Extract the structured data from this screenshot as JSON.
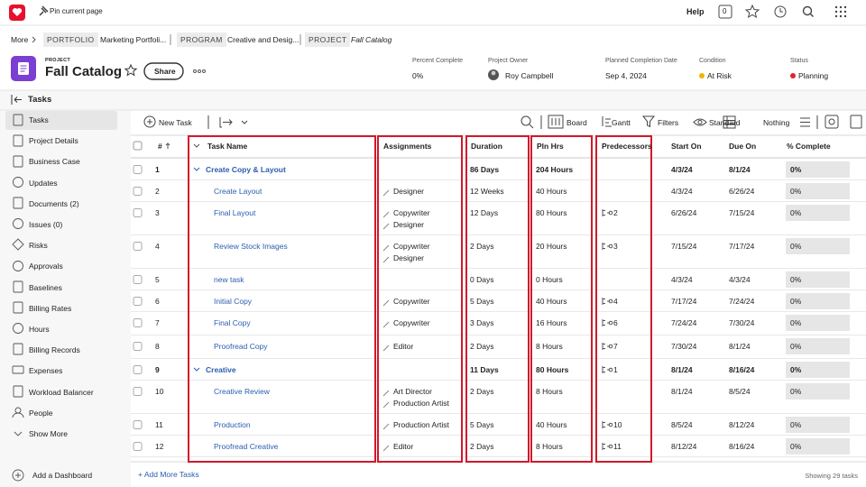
{
  "topbar": {
    "pin": "Pin current page",
    "help": "Help",
    "badge": "0"
  },
  "breadcrumb": {
    "more": "More",
    "items": [
      {
        "tag": "PORTFOLIO",
        "name": "Marketing Portfoli..."
      },
      {
        "tag": "PROGRAM",
        "name": "Creative and Desig..."
      },
      {
        "tag": "PROJECT",
        "name": "Fall Catalog"
      }
    ]
  },
  "project": {
    "label": "PROJECT",
    "title": "Fall Catalog",
    "share": "Share",
    "fields": [
      {
        "label": "Percent Complete",
        "value": "0%"
      },
      {
        "label": "Project Owner",
        "value": "Roy Campbell"
      },
      {
        "label": "Planned Completion Date",
        "value": "Sep 4, 2024"
      },
      {
        "label": "Condition",
        "value": "At Risk"
      },
      {
        "label": "Status",
        "value": "Planning"
      }
    ]
  },
  "sidebar": {
    "title": "Tasks",
    "items": [
      "Tasks",
      "Project Details",
      "Business Case",
      "Updates",
      "Documents (2)",
      "Issues (0)",
      "Risks",
      "Approvals",
      "Baselines",
      "Billing Rates",
      "Hours",
      "Billing Records",
      "Expenses",
      "Workload Balancer",
      "People",
      "Show More"
    ],
    "footer": "Add a Dashboard"
  },
  "toolbar": {
    "new_task": "New Task",
    "board": "Board",
    "gantt": "Gantt",
    "filters": "Filters",
    "standard": "Standard",
    "nothing": "Nothing"
  },
  "table": {
    "headers": [
      "#",
      "Task Name",
      "Assignments",
      "Duration",
      "Pln Hrs",
      "Predecessors",
      "Start On",
      "Due On",
      "% Complete"
    ],
    "rows": [
      {
        "num": 1,
        "name": "Create Copy & Layout",
        "summary": true,
        "assignments": [],
        "duration": "86 Days",
        "hours": "204 Hours",
        "predecessor": null,
        "start": "4/3/24",
        "due": "8/1/24",
        "complete": "0%"
      },
      {
        "num": 2,
        "name": "Create Layout",
        "summary": false,
        "assignments": [
          "Designer"
        ],
        "duration": "12 Weeks",
        "hours": "40 Hours",
        "predecessor": null,
        "start": "4/3/24",
        "due": "6/26/24",
        "complete": "0%"
      },
      {
        "num": 3,
        "name": "Final Layout",
        "summary": false,
        "assignments": [
          "Copywriter",
          "Designer"
        ],
        "duration": "12 Days",
        "hours": "80 Hours",
        "predecessor": 2,
        "start": "6/26/24",
        "due": "7/15/24",
        "complete": "0%"
      },
      {
        "num": 4,
        "name": "Review Stock Images",
        "summary": false,
        "assignments": [
          "Copywriter",
          "Designer"
        ],
        "duration": "2 Days",
        "hours": "20 Hours",
        "predecessor": 3,
        "start": "7/15/24",
        "due": "7/17/24",
        "complete": "0%"
      },
      {
        "num": 5,
        "name": "new task",
        "summary": false,
        "assignments": [],
        "duration": "0 Days",
        "hours": "0 Hours",
        "predecessor": null,
        "start": "4/3/24",
        "due": "4/3/24",
        "complete": "0%"
      },
      {
        "num": 6,
        "name": "Initial Copy",
        "summary": false,
        "assignments": [
          "Copywriter"
        ],
        "duration": "5 Days",
        "hours": "40 Hours",
        "predecessor": 4,
        "start": "7/17/24",
        "due": "7/24/24",
        "complete": "0%"
      },
      {
        "num": 7,
        "name": "Final Copy",
        "summary": false,
        "assignments": [
          "Copywriter"
        ],
        "duration": "3 Days",
        "hours": "16 Hours",
        "predecessor": 6,
        "start": "7/24/24",
        "due": "7/30/24",
        "complete": "0%"
      },
      {
        "num": 8,
        "name": "Proofread Copy",
        "summary": false,
        "assignments": [
          "Editor"
        ],
        "duration": "2 Days",
        "hours": "8 Hours",
        "predecessor": 7,
        "start": "7/30/24",
        "due": "8/1/24",
        "complete": "0%"
      },
      {
        "num": 9,
        "name": "Creative",
        "summary": true,
        "assignments": [],
        "duration": "11 Days",
        "hours": "80 Hours",
        "predecessor": 1,
        "start": "8/1/24",
        "due": "8/16/24",
        "complete": "0%"
      },
      {
        "num": 10,
        "name": "Creative Review",
        "summary": false,
        "assignments": [
          "Art Director",
          "Production Artist"
        ],
        "duration": "2 Days",
        "hours": "8 Hours",
        "predecessor": null,
        "start": "8/1/24",
        "due": "8/5/24",
        "complete": "0%"
      },
      {
        "num": 11,
        "name": "Production",
        "summary": false,
        "assignments": [
          "Production Artist"
        ],
        "duration": "5 Days",
        "hours": "40 Hours",
        "predecessor": 10,
        "start": "8/5/24",
        "due": "8/12/24",
        "complete": "0%"
      },
      {
        "num": 12,
        "name": "Proofread Creative",
        "summary": false,
        "assignments": [
          "Editor"
        ],
        "duration": "2 Days",
        "hours": "8 Hours",
        "predecessor": 11,
        "start": "8/12/24",
        "due": "8/16/24",
        "complete": "0%"
      }
    ]
  },
  "footer": {
    "add_more": "+ Add More Tasks",
    "showing": "Showing 29 tasks"
  }
}
